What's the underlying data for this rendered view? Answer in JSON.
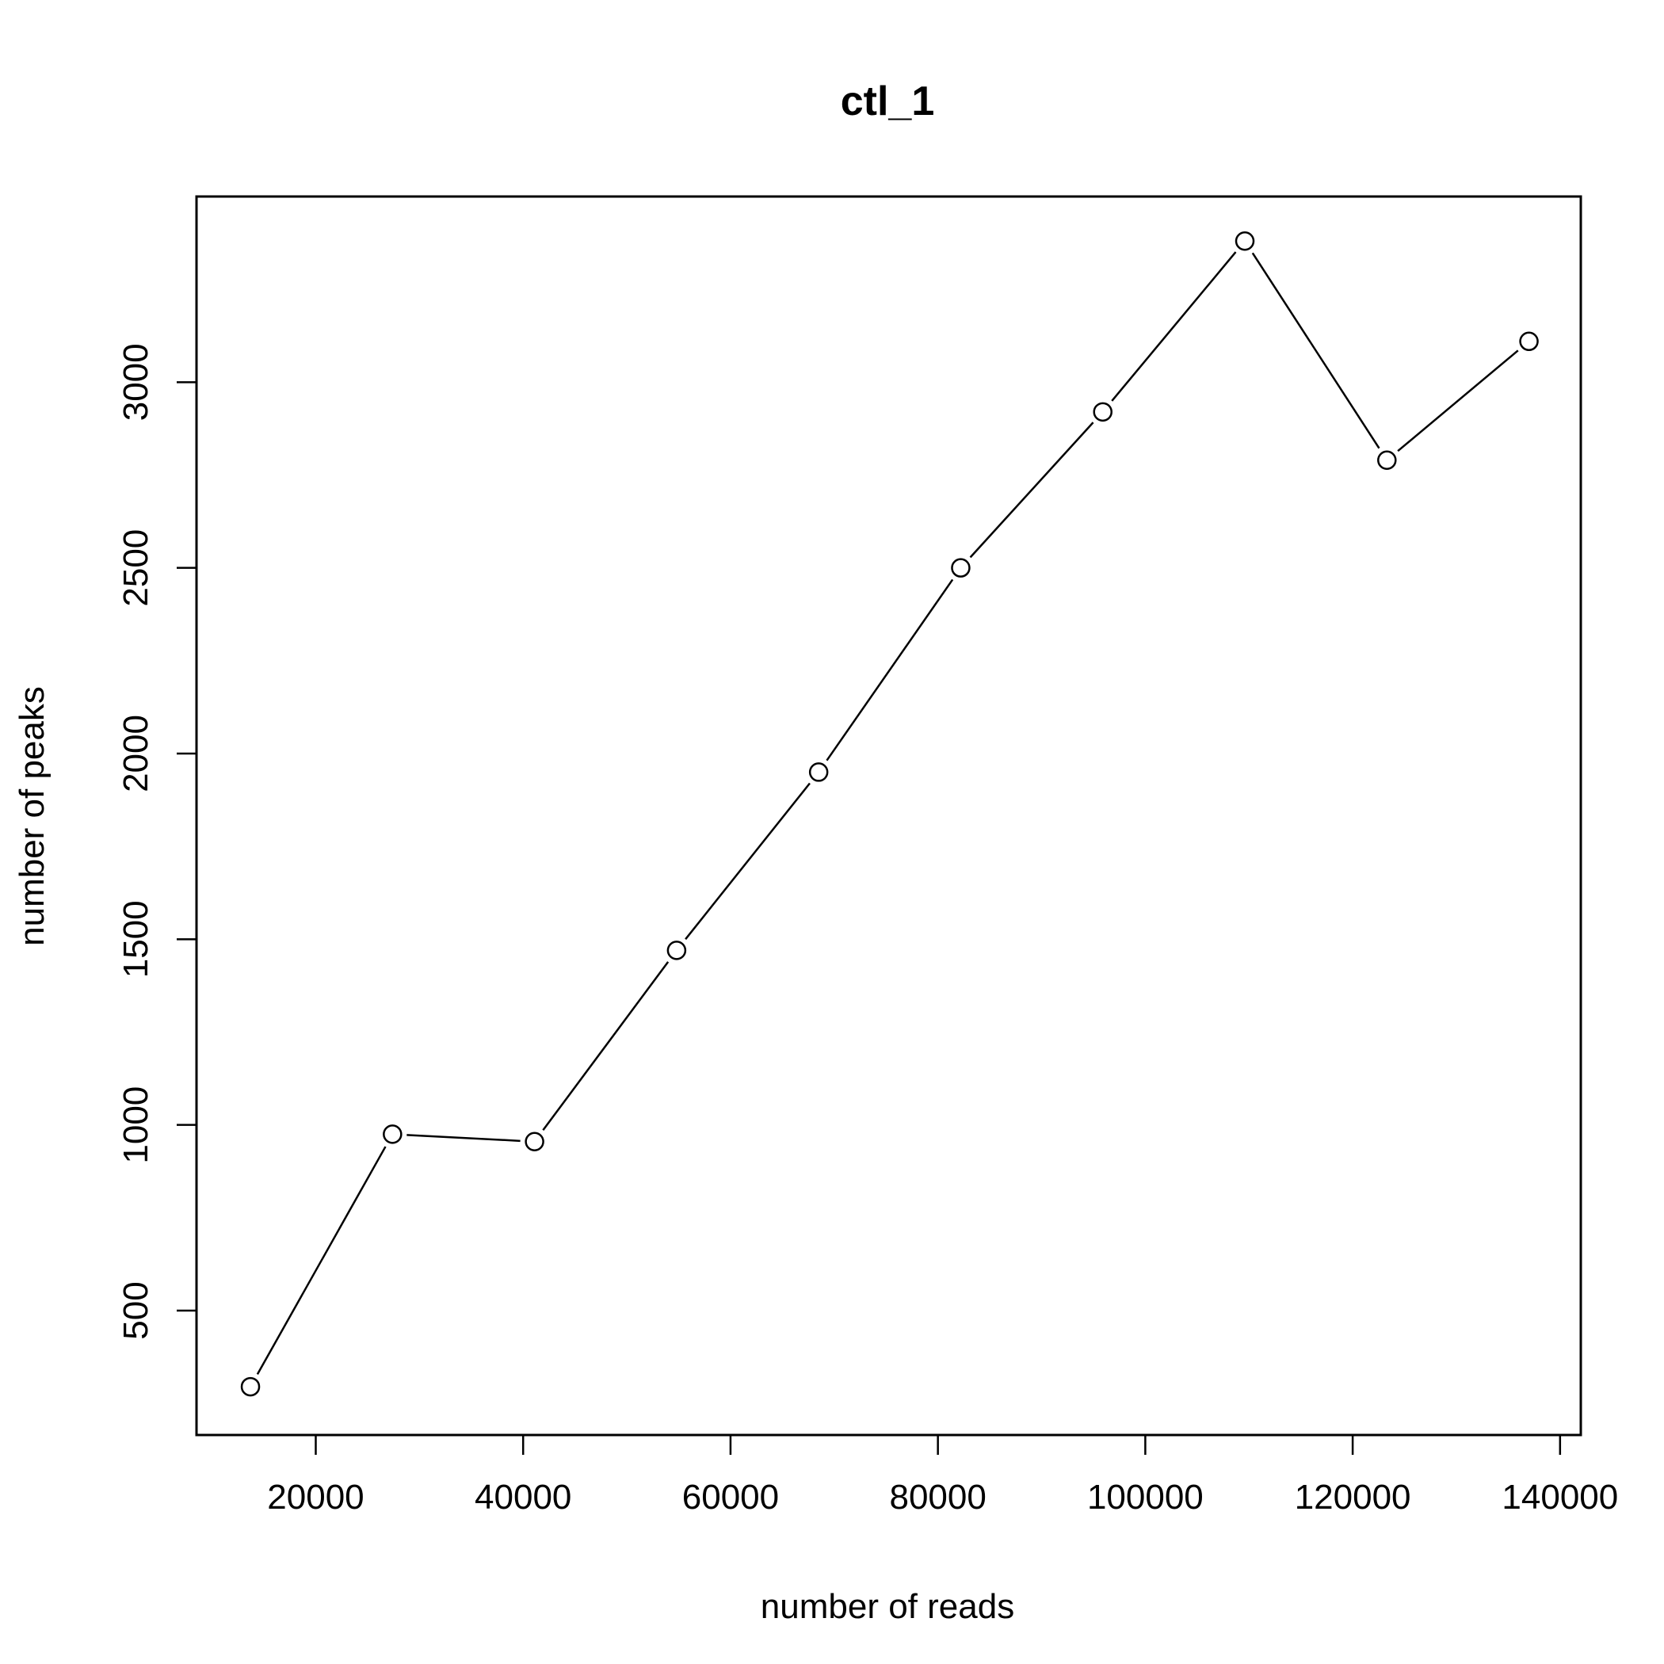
{
  "chart_data": {
    "type": "line",
    "title": "ctl_1",
    "xlabel": "number of reads",
    "ylabel": "number of peaks",
    "x": [
      13700,
      27400,
      41100,
      54800,
      68500,
      82200,
      95900,
      109600,
      123300,
      137000
    ],
    "y": [
      295,
      975,
      955,
      1470,
      1950,
      2500,
      2920,
      3380,
      2790,
      3110
    ],
    "xticks": [
      20000,
      40000,
      60000,
      80000,
      100000,
      120000,
      140000
    ],
    "xtick_labels": [
      "20000",
      "40000",
      "60000",
      "80000",
      "100000",
      "120000",
      "140000"
    ],
    "yticks": [
      500,
      1000,
      1500,
      2000,
      2500,
      3000
    ],
    "ytick_labels": [
      "500",
      "1000",
      "1500",
      "2000",
      "2500",
      "3000"
    ],
    "xlim": [
      8500,
      142000
    ],
    "ylim": [
      165,
      3500
    ],
    "grid": false,
    "marker": "open-circle"
  }
}
